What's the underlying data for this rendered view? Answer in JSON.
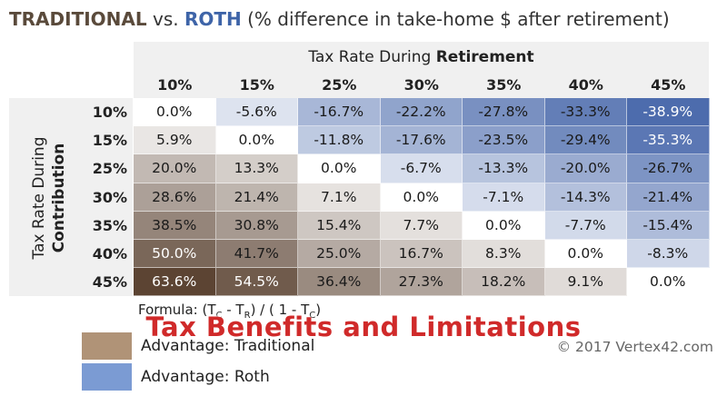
{
  "title": {
    "traditional": "TRADITIONAL",
    "vs": "vs.",
    "roth": "ROTH",
    "rest": "(% difference in take-home $ after retirement)"
  },
  "chart_data": {
    "type": "heatmap",
    "column_axis_label": {
      "prefix": "Tax Rate During ",
      "bold": "Retirement"
    },
    "row_axis_label": {
      "line1": "Tax Rate During",
      "line2": "Contribution"
    },
    "columns": [
      "10%",
      "15%",
      "25%",
      "30%",
      "35%",
      "40%",
      "45%"
    ],
    "rows": [
      "10%",
      "15%",
      "25%",
      "30%",
      "35%",
      "40%",
      "45%"
    ],
    "tax_rates": [
      0.1,
      0.15,
      0.25,
      0.3,
      0.35,
      0.4,
      0.45
    ],
    "values": [
      [
        0.0,
        -5.6,
        -16.7,
        -22.2,
        -27.8,
        -33.3,
        -38.9
      ],
      [
        5.9,
        0.0,
        -11.8,
        -17.6,
        -23.5,
        -29.4,
        -35.3
      ],
      [
        20.0,
        13.3,
        0.0,
        -6.7,
        -13.3,
        -20.0,
        -26.7
      ],
      [
        28.6,
        21.4,
        7.1,
        0.0,
        -7.1,
        -14.3,
        -21.4
      ],
      [
        38.5,
        30.8,
        15.4,
        7.7,
        0.0,
        -7.7,
        -15.4
      ],
      [
        50.0,
        41.7,
        25.0,
        16.7,
        8.3,
        0.0,
        -8.3
      ],
      [
        63.6,
        54.5,
        36.4,
        27.3,
        18.2,
        9.1,
        0.0
      ]
    ],
    "value_suffix": "%",
    "colors": {
      "traditional": "#5c4433",
      "roth": "#3d5fa6",
      "neutral": "#ffffff"
    },
    "formula": {
      "prefix": "Formula: (T",
      "sub_c": "C",
      "mid1": " - T",
      "sub_r": "R",
      "mid2": ") / ( 1 - T",
      "suffix": ")"
    },
    "legend": [
      {
        "label": "Advantage: Traditional",
        "color": "#b09377"
      },
      {
        "label": "Advantage: Roth",
        "color": "#7b9bd3"
      }
    ]
  },
  "copyright": "© 2017 Vertex42.com",
  "overlay_caption": "Tax Benefits and Limitations"
}
